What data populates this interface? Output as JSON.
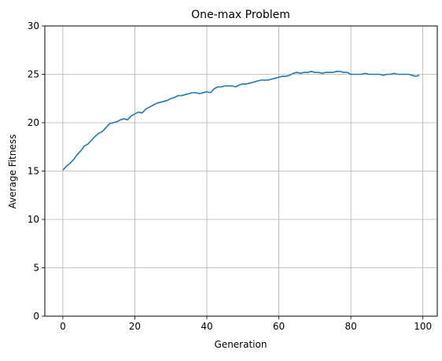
{
  "chart_data": {
    "type": "line",
    "title": "One-max Problem",
    "xlabel": "Generation",
    "ylabel": "Average Fitness",
    "xlim": [
      -5,
      104
    ],
    "ylim": [
      0,
      30
    ],
    "xticks": [
      0,
      20,
      40,
      60,
      80,
      100
    ],
    "yticks": [
      0,
      5,
      10,
      15,
      20,
      25,
      30
    ],
    "grid": true,
    "line_color": "#1f77b4",
    "series": [
      {
        "x": [
          0,
          1,
          2,
          3,
          4,
          5,
          6,
          7,
          8,
          9,
          10,
          11,
          12,
          13,
          14,
          15,
          16,
          17,
          18,
          19,
          20,
          21,
          22,
          23,
          24,
          25,
          26,
          27,
          28,
          29,
          30,
          31,
          32,
          33,
          34,
          35,
          36,
          37,
          38,
          39,
          40,
          41,
          42,
          43,
          44,
          45,
          46,
          47,
          48,
          49,
          50,
          51,
          52,
          53,
          54,
          55,
          56,
          57,
          58,
          59,
          60,
          61,
          62,
          63,
          64,
          65,
          66,
          67,
          68,
          69,
          70,
          71,
          72,
          73,
          74,
          75,
          76,
          77,
          78,
          79,
          80,
          81,
          82,
          83,
          84,
          85,
          86,
          87,
          88,
          89,
          90,
          91,
          92,
          93,
          94,
          95,
          96,
          97,
          98,
          99
        ],
        "values": [
          15.1,
          15.5,
          15.8,
          16.2,
          16.7,
          17.1,
          17.6,
          17.8,
          18.2,
          18.6,
          18.9,
          19.1,
          19.5,
          19.9,
          20.0,
          20.1,
          20.3,
          20.4,
          20.3,
          20.7,
          20.9,
          21.1,
          21.0,
          21.4,
          21.6,
          21.8,
          22.0,
          22.1,
          22.2,
          22.3,
          22.5,
          22.6,
          22.8,
          22.8,
          22.9,
          23.0,
          23.1,
          23.1,
          23.0,
          23.1,
          23.2,
          23.1,
          23.5,
          23.7,
          23.7,
          23.8,
          23.8,
          23.8,
          23.7,
          23.9,
          24.0,
          24.0,
          24.1,
          24.2,
          24.3,
          24.4,
          24.4,
          24.4,
          24.5,
          24.6,
          24.7,
          24.8,
          24.8,
          24.9,
          25.1,
          25.2,
          25.1,
          25.2,
          25.2,
          25.3,
          25.2,
          25.2,
          25.1,
          25.2,
          25.2,
          25.2,
          25.3,
          25.3,
          25.2,
          25.2,
          25.0,
          25.0,
          25.0,
          25.0,
          25.1,
          25.0,
          25.0,
          25.0,
          25.0,
          24.9,
          25.0,
          25.0,
          25.1,
          25.0,
          25.0,
          25.0,
          25.0,
          24.9,
          24.8,
          24.9
        ]
      }
    ]
  }
}
